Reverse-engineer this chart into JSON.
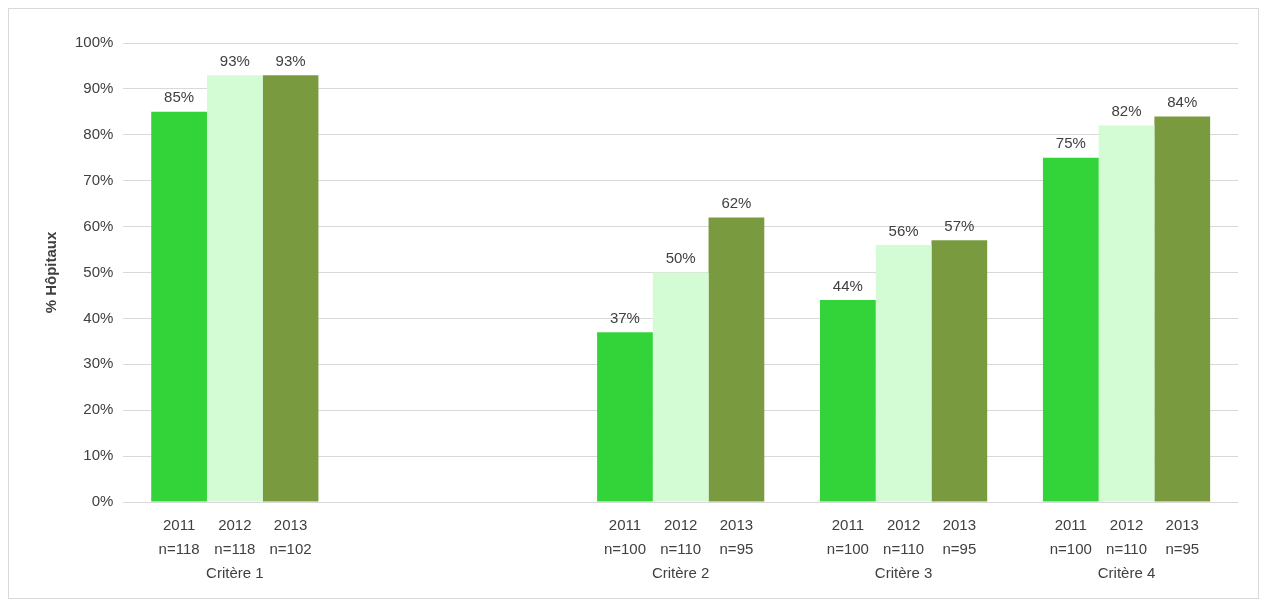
{
  "chart_data": {
    "type": "bar",
    "ylabel": "% Hôpitaux",
    "categories": [
      "Critère 1",
      null,
      "Critère 2",
      "Critère 3",
      "Critère 4"
    ],
    "series": [
      {
        "name": "2011",
        "color": "#33d43a",
        "values": [
          85,
          null,
          37,
          44,
          75
        ],
        "value_labels": [
          "85%",
          null,
          "37%",
          "44%",
          "75%"
        ]
      },
      {
        "name": "2012",
        "color": "#d4fcd4",
        "values": [
          93,
          null,
          50,
          56,
          82
        ],
        "value_labels": [
          "93%",
          null,
          "50%",
          "56%",
          "82%"
        ]
      },
      {
        "name": "2013",
        "color": "#7a9a40",
        "values": [
          93,
          null,
          62,
          57,
          84
        ],
        "value_labels": [
          "93%",
          null,
          "62%",
          "57%",
          "84%"
        ]
      }
    ],
    "annotations": [
      "n=118",
      "n=118",
      "n=102",
      "n=100",
      "n=110",
      "n=95",
      "n=100",
      "n=110",
      "n=95",
      "n=100",
      "n=110",
      "n=95"
    ],
    "ylim": [
      0,
      100
    ],
    "yticks": [
      {
        "value": 0,
        "label": "0%"
      },
      {
        "value": 10,
        "label": "10%"
      },
      {
        "value": 20,
        "label": "20%"
      },
      {
        "value": 30,
        "label": "30%"
      },
      {
        "value": 40,
        "label": "40%"
      },
      {
        "value": 50,
        "label": "50%"
      },
      {
        "value": 60,
        "label": "60%"
      },
      {
        "value": 70,
        "label": "70%"
      },
      {
        "value": 80,
        "label": "80%"
      },
      {
        "value": 90,
        "label": "90%"
      },
      {
        "value": 100,
        "label": "100%"
      }
    ],
    "grid": "y",
    "legend": false
  }
}
